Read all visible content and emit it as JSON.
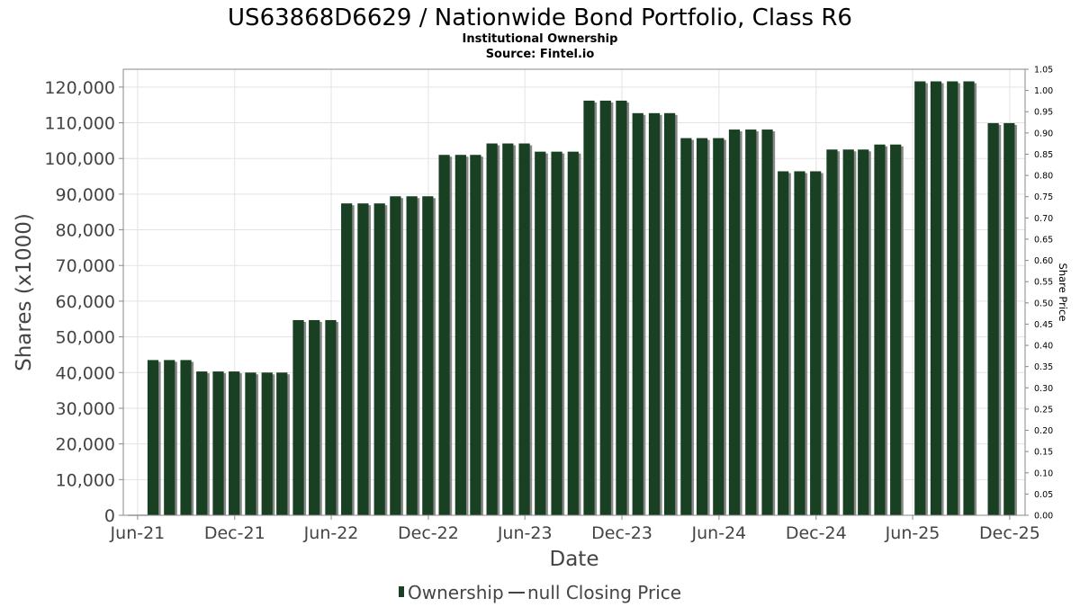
{
  "chart_data": {
    "type": "bar",
    "title": "US63868D6629 / Nationwide Bond Portfolio, Class R6",
    "subtitle_1": "Institutional Ownership",
    "subtitle_2": "Source: Fintel.io",
    "xlabel": "Date",
    "ylabel": "Shares (x1000)",
    "y2label": "Share Price",
    "ylim": [
      0,
      125000
    ],
    "y_ticks": [
      "0",
      "10,000",
      "20,000",
      "30,000",
      "40,000",
      "50,000",
      "60,000",
      "70,000",
      "80,000",
      "90,000",
      "100,000",
      "110,000",
      "120,000"
    ],
    "y2lim": [
      0,
      1.05
    ],
    "y2_ticks": [
      "0.00",
      "0.05",
      "0.10",
      "0.15",
      "0.20",
      "0.25",
      "0.30",
      "0.35",
      "0.40",
      "0.45",
      "0.50",
      "0.55",
      "0.60",
      "0.65",
      "0.70",
      "0.75",
      "0.80",
      "0.85",
      "0.90",
      "0.95",
      "1.00",
      "1.05"
    ],
    "x_range": [
      "2021-05-05",
      "2025-12-30"
    ],
    "x_ticks": [
      {
        "label": "Jun-21",
        "date": "2021-06-01"
      },
      {
        "label": "Dec-21",
        "date": "2021-12-01"
      },
      {
        "label": "Jun-22",
        "date": "2022-06-01"
      },
      {
        "label": "Dec-22",
        "date": "2022-12-01"
      },
      {
        "label": "Jun-23",
        "date": "2023-06-01"
      },
      {
        "label": "Dec-23",
        "date": "2023-12-01"
      },
      {
        "label": "Jun-24",
        "date": "2024-06-01"
      },
      {
        "label": "Dec-24",
        "date": "2024-12-01"
      },
      {
        "label": "Jun-25",
        "date": "2025-06-01"
      },
      {
        "label": "Dec-25",
        "date": "2025-12-01"
      }
    ],
    "grid": true,
    "legend_position": "bottom",
    "series": [
      {
        "name": "Ownership",
        "color": "#1a4024",
        "shadow_color": "#888888",
        "points": [
          {
            "date": "2021-06-30",
            "value": 43500
          },
          {
            "date": "2021-07-31",
            "value": 43500
          },
          {
            "date": "2021-08-31",
            "value": 43500
          },
          {
            "date": "2021-09-30",
            "value": 40300
          },
          {
            "date": "2021-10-31",
            "value": 40300
          },
          {
            "date": "2021-11-30",
            "value": 40300
          },
          {
            "date": "2021-12-31",
            "value": 40000
          },
          {
            "date": "2022-01-31",
            "value": 40000
          },
          {
            "date": "2022-02-28",
            "value": 40000
          },
          {
            "date": "2022-03-31",
            "value": 54700
          },
          {
            "date": "2022-04-30",
            "value": 54700
          },
          {
            "date": "2022-05-31",
            "value": 54700
          },
          {
            "date": "2022-06-30",
            "value": 87400
          },
          {
            "date": "2022-07-31",
            "value": 87400
          },
          {
            "date": "2022-08-31",
            "value": 87400
          },
          {
            "date": "2022-09-30",
            "value": 89400
          },
          {
            "date": "2022-10-31",
            "value": 89400
          },
          {
            "date": "2022-11-30",
            "value": 89400
          },
          {
            "date": "2022-12-31",
            "value": 101000
          },
          {
            "date": "2023-01-31",
            "value": 101000
          },
          {
            "date": "2023-02-28",
            "value": 101000
          },
          {
            "date": "2023-03-31",
            "value": 104200
          },
          {
            "date": "2023-04-30",
            "value": 104200
          },
          {
            "date": "2023-05-31",
            "value": 104200
          },
          {
            "date": "2023-06-30",
            "value": 101900
          },
          {
            "date": "2023-07-31",
            "value": 101900
          },
          {
            "date": "2023-08-31",
            "value": 101900
          },
          {
            "date": "2023-09-30",
            "value": 116200
          },
          {
            "date": "2023-10-31",
            "value": 116200
          },
          {
            "date": "2023-11-30",
            "value": 116200
          },
          {
            "date": "2023-12-31",
            "value": 112700
          },
          {
            "date": "2024-01-31",
            "value": 112700
          },
          {
            "date": "2024-02-29",
            "value": 112700
          },
          {
            "date": "2024-03-31",
            "value": 105700
          },
          {
            "date": "2024-04-30",
            "value": 105700
          },
          {
            "date": "2024-05-31",
            "value": 105700
          },
          {
            "date": "2024-06-30",
            "value": 108100
          },
          {
            "date": "2024-07-31",
            "value": 108100
          },
          {
            "date": "2024-08-31",
            "value": 108100
          },
          {
            "date": "2024-09-30",
            "value": 96400
          },
          {
            "date": "2024-10-31",
            "value": 96400
          },
          {
            "date": "2024-11-30",
            "value": 96400
          },
          {
            "date": "2024-12-31",
            "value": 102500
          },
          {
            "date": "2025-01-31",
            "value": 102500
          },
          {
            "date": "2025-02-28",
            "value": 102500
          },
          {
            "date": "2025-03-31",
            "value": 103900
          },
          {
            "date": "2025-04-30",
            "value": 103900
          },
          {
            "date": "2025-06-15",
            "value": 121600
          },
          {
            "date": "2025-07-15",
            "value": 121600
          },
          {
            "date": "2025-08-15",
            "value": 121600
          },
          {
            "date": "2025-09-15",
            "value": 121600
          },
          {
            "date": "2025-10-31",
            "value": 109900
          },
          {
            "date": "2025-11-30",
            "value": 109900
          }
        ]
      },
      {
        "name": "null Closing Price",
        "color": "#444444",
        "points": []
      }
    ]
  }
}
